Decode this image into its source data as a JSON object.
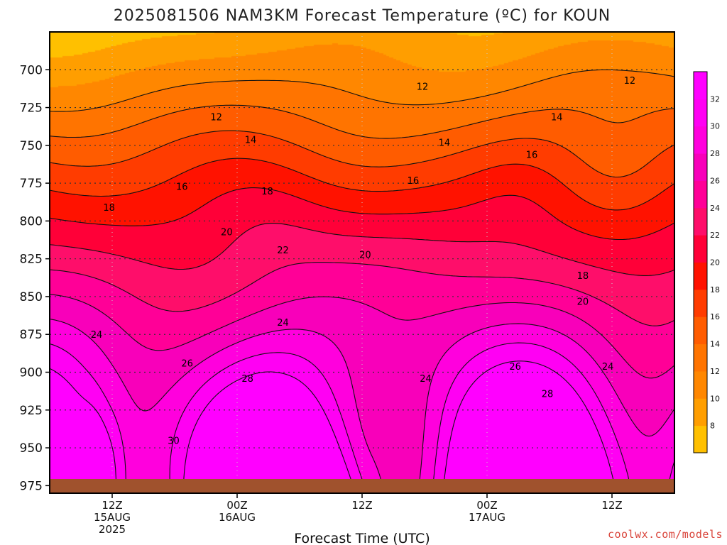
{
  "page": {
    "title": "2025081506 NAM3KM Forecast Temperature (ºC) for KOUN",
    "credit": "coolwx.com/models"
  },
  "chart_data": {
    "type": "contour",
    "title": "2025081506 NAM3KM Forecast Temperature (ºC) for KOUN",
    "xlabel": "Forecast Time (UTC)",
    "ylabel": "",
    "x_ticks": [
      {
        "lines": [
          "12Z",
          "15AUG",
          "2025"
        ],
        "hour": 6
      },
      {
        "lines": [
          "00Z",
          "16AUG"
        ],
        "hour": 18
      },
      {
        "lines": [
          "12Z"
        ],
        "hour": 30
      },
      {
        "lines": [
          "00Z",
          "17AUG"
        ],
        "hour": 42
      },
      {
        "lines": [
          "12Z"
        ],
        "hour": 54
      }
    ],
    "xlim_hours": [
      0,
      60
    ],
    "y_ticks": [
      700,
      725,
      750,
      775,
      800,
      825,
      850,
      875,
      900,
      925,
      950,
      975
    ],
    "ylim": [
      675,
      980
    ],
    "grid": "dotted at tick positions",
    "surface_pressure_hpa": 972,
    "colorbar": {
      "ticks": [
        8,
        10,
        12,
        14,
        16,
        18,
        20,
        22,
        24,
        26,
        28,
        30,
        32
      ],
      "levels": [
        6,
        8,
        10,
        12,
        14,
        16,
        18,
        20,
        22,
        24,
        26,
        28,
        30,
        32,
        34
      ],
      "colors": [
        "#ffc000",
        "#ff9e00",
        "#ff8700",
        "#ff7400",
        "#ff5c00",
        "#ff3c00",
        "#ff1200",
        "#ff0038",
        "#fe0e6a",
        "#ff0097",
        "#f800ba",
        "#ff00dd",
        "#ff00f3",
        "#ff00ff"
      ]
    },
    "contour_levels": [
      12,
      14,
      16,
      18,
      20,
      22,
      24,
      26,
      28,
      30,
      32
    ],
    "contour_labels": [
      {
        "text": "12",
        "hour": 16,
        "p": 731
      },
      {
        "text": "12",
        "hour": 35.8,
        "p": 711
      },
      {
        "text": "12",
        "hour": 55.7,
        "p": 707
      },
      {
        "text": "14",
        "hour": 19.3,
        "p": 746
      },
      {
        "text": "14",
        "hour": 37.9,
        "p": 748
      },
      {
        "text": "14",
        "hour": 48.7,
        "p": 731
      },
      {
        "text": "16",
        "hour": 12.7,
        "p": 777
      },
      {
        "text": "16",
        "hour": 34.9,
        "p": 773
      },
      {
        "text": "16",
        "hour": 46.3,
        "p": 756
      },
      {
        "text": "18",
        "hour": 5.7,
        "p": 791
      },
      {
        "text": "18",
        "hour": 20.9,
        "p": 780
      },
      {
        "text": "18",
        "hour": 51.2,
        "p": 836
      },
      {
        "text": "20",
        "hour": 17,
        "p": 807
      },
      {
        "text": "20",
        "hour": 30.3,
        "p": 822
      },
      {
        "text": "20",
        "hour": 51.2,
        "p": 853
      },
      {
        "text": "22",
        "hour": 22.4,
        "p": 819
      },
      {
        "text": "24",
        "hour": 4.5,
        "p": 875
      },
      {
        "text": "24",
        "hour": 22.4,
        "p": 867
      },
      {
        "text": "24",
        "hour": 36.1,
        "p": 904
      },
      {
        "text": "24",
        "hour": 53.6,
        "p": 896
      },
      {
        "text": "26",
        "hour": 13.2,
        "p": 894
      },
      {
        "text": "26",
        "hour": 44.7,
        "p": 896
      },
      {
        "text": "28",
        "hour": 19,
        "p": 904
      },
      {
        "text": "28",
        "hour": 47.8,
        "p": 914
      },
      {
        "text": "30",
        "hour": 11.9,
        "p": 945
      }
    ]
  }
}
